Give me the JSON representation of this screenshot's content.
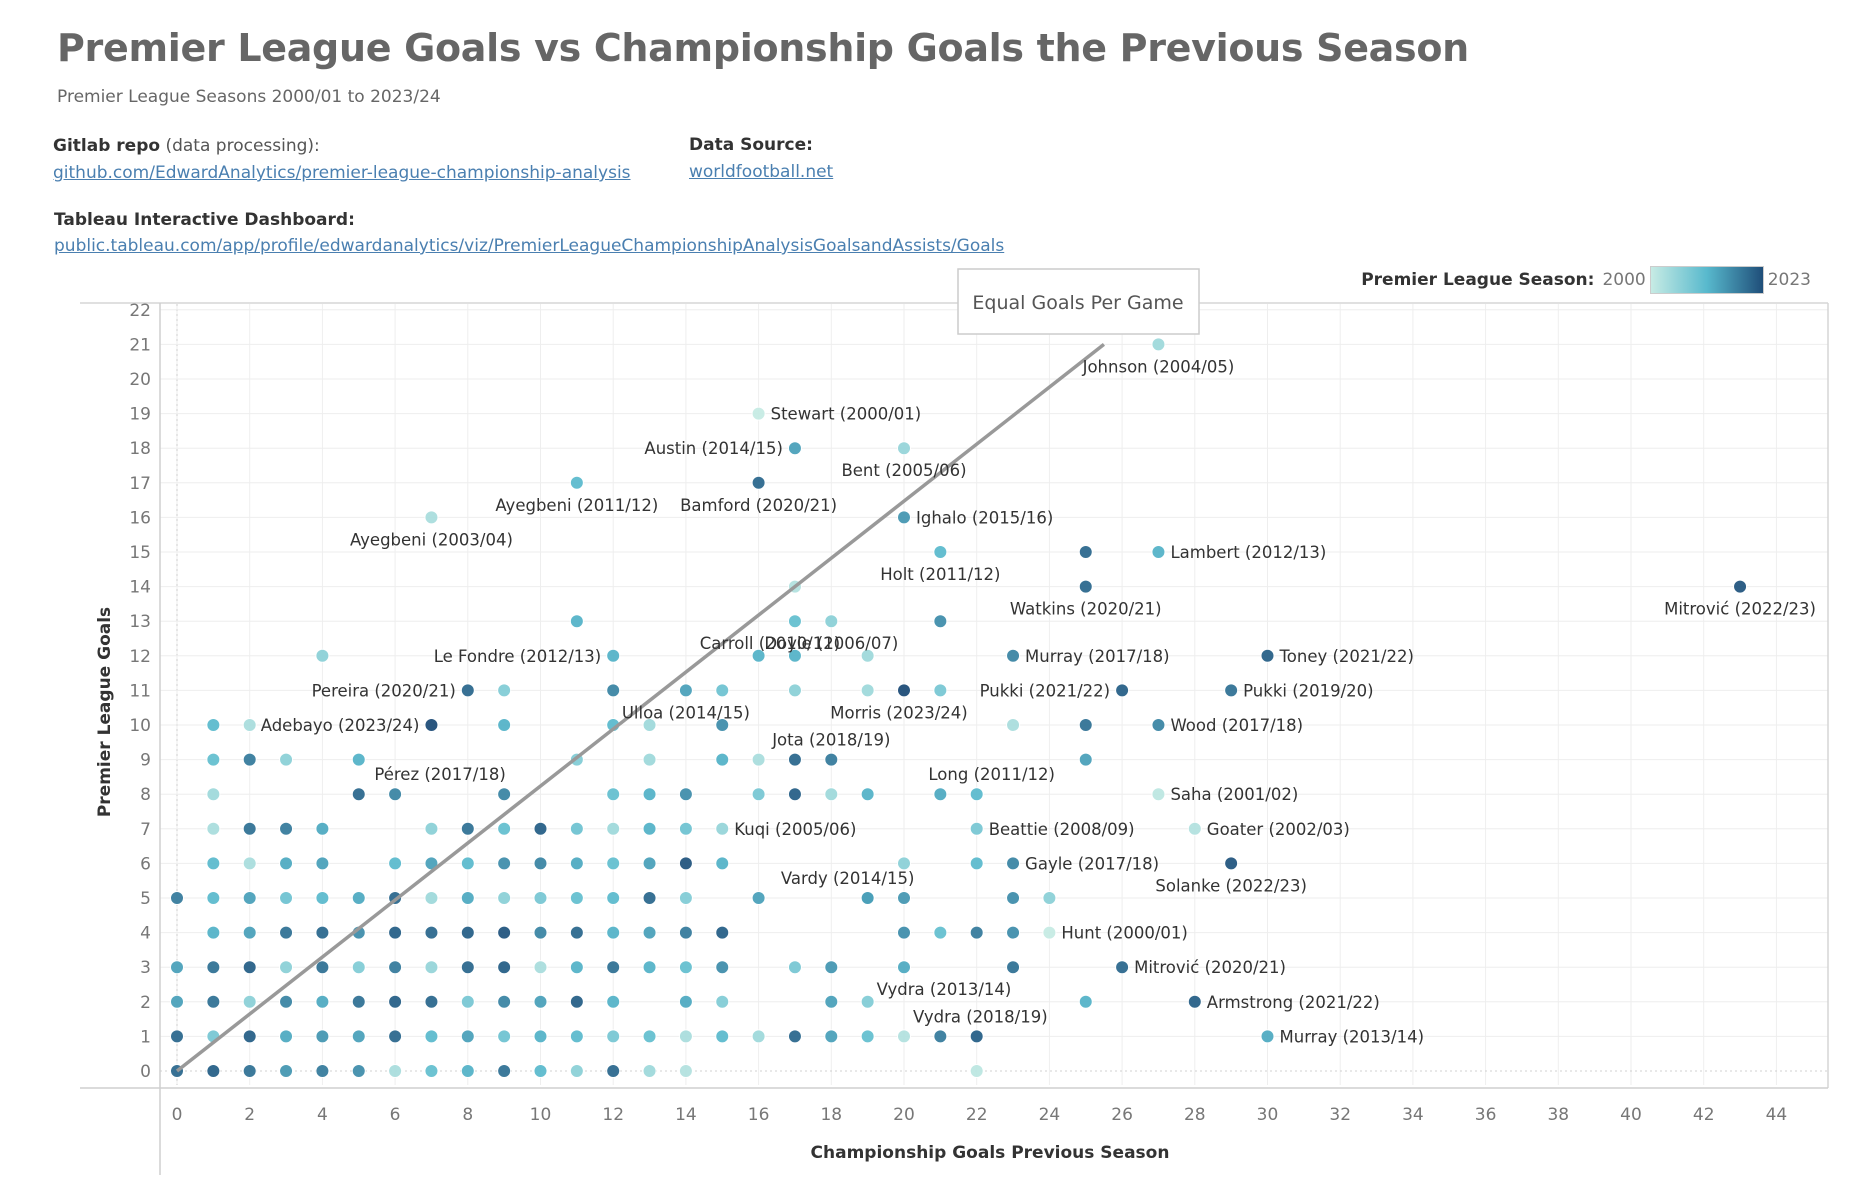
{
  "header": {
    "title": "Premier League Goals vs Championship Goals the Previous Season",
    "subtitle": "Premier League Seasons 2000/01 to 2023/24"
  },
  "info": {
    "gitlab_label": "Gitlab repo",
    "gitlab_suffix": " (data processing):",
    "gitlab_link": "github.com/EdwardAnalytics/premier-league-championship-analysis",
    "source_label": "Data Source:",
    "source_link": "worldfootball.net",
    "tableau_label": "Tableau  Interactive Dashboard:",
    "tableau_link": "public.tableau.com/app/profile/edwardanalytics/viz/PremierLeagueChampionshipAnalysisGoalsandAssists/Goals"
  },
  "legend": {
    "label": "Premier League Season:",
    "min": "2000",
    "max": "2023"
  },
  "annotation": {
    "text": "Equal Goals Per Game"
  },
  "colors": {
    "light": "#c7ebe4",
    "mid": "#58b9cd",
    "dark": "#1f4e79",
    "line": "#999999"
  },
  "chart_data": {
    "type": "scatter",
    "xlabel": "Championship Goals Previous Season",
    "ylabel": "Premier League Goals",
    "xlim": [
      -0.5,
      45.5
    ],
    "ylim": [
      -0.5,
      22.5
    ],
    "xticks": [
      0,
      2,
      4,
      6,
      8,
      10,
      12,
      14,
      16,
      18,
      20,
      22,
      24,
      26,
      28,
      30,
      32,
      34,
      36,
      38,
      40,
      42,
      44
    ],
    "yticks": [
      0,
      1,
      2,
      3,
      4,
      5,
      6,
      7,
      8,
      9,
      10,
      11,
      12,
      13,
      14,
      15,
      16,
      17,
      18,
      19,
      20,
      21,
      22
    ],
    "color_by": "Premier League Season",
    "reference_line": {
      "label": "Equal Goals Per Game",
      "from": [
        0,
        0
      ],
      "to": [
        25.5,
        21
      ]
    },
    "labeled_points": [
      {
        "label": "Johnson (2004/05)",
        "x": 27,
        "y": 21,
        "season": 2004
      },
      {
        "label": "Stewart (2000/01)",
        "x": 16,
        "y": 19,
        "season": 2000
      },
      {
        "label": "Austin (2014/15)",
        "x": 17,
        "y": 18,
        "season": 2014
      },
      {
        "label": "Bent (2005/06)",
        "x": 20,
        "y": 18,
        "season": 2005
      },
      {
        "label": "Ayegbeni (2011/12)",
        "x": 11,
        "y": 17,
        "season": 2011
      },
      {
        "label": "Bamford (2020/21)",
        "x": 16,
        "y": 17,
        "season": 2020
      },
      {
        "label": "Ayegbeni (2003/04)",
        "x": 7,
        "y": 16,
        "season": 2003
      },
      {
        "label": "Ighalo (2015/16)",
        "x": 20,
        "y": 16,
        "season": 2015
      },
      {
        "label": "Lambert (2012/13)",
        "x": 27,
        "y": 15,
        "season": 2012
      },
      {
        "label": "Holt (2011/12)",
        "x": 21,
        "y": 15,
        "season": 2011
      },
      {
        "label": "Mitrović (2022/23)",
        "x": 43,
        "y": 14,
        "season": 2022
      },
      {
        "label": "Watkins (2020/21)",
        "x": 25,
        "y": 14,
        "season": 2020
      },
      {
        "label": "Doyle (2006/07)",
        "x": 18,
        "y": 13,
        "season": 2006
      },
      {
        "label": "Carroll (2010/11)",
        "x": 17,
        "y": 13,
        "season": 2010
      },
      {
        "label": "Le Fondre (2012/13)",
        "x": 12,
        "y": 12,
        "season": 2012
      },
      {
        "label": "Murray (2017/18)",
        "x": 23,
        "y": 12,
        "season": 2017
      },
      {
        "label": "Toney (2021/22)",
        "x": 30,
        "y": 12,
        "season": 2021
      },
      {
        "label": "Ulloa (2014/15)",
        "x": 14,
        "y": 11,
        "season": 2014
      },
      {
        "label": "Pereira (2020/21)",
        "x": 8,
        "y": 11,
        "season": 2020
      },
      {
        "label": "Pukki (2021/22)",
        "x": 26,
        "y": 11,
        "season": 2021
      },
      {
        "label": "Pukki (2019/20)",
        "x": 29,
        "y": 11,
        "season": 2019
      },
      {
        "label": "Adebayo (2023/24)",
        "x": 7,
        "y": 10,
        "season": 2023
      },
      {
        "label": "Morris (2023/24)",
        "x": 20,
        "y": 11,
        "season": 2023
      },
      {
        "label": "Wood (2017/18)",
        "x": 27,
        "y": 10,
        "season": 2017
      },
      {
        "label": "Jota (2018/19)",
        "x": 18,
        "y": 9,
        "season": 2018
      },
      {
        "label": "Pérez (2017/18)",
        "x": 6,
        "y": 8,
        "season": 2017
      },
      {
        "label": "Long (2011/12)",
        "x": 22,
        "y": 8,
        "season": 2011
      },
      {
        "label": "Saha (2001/02)",
        "x": 27,
        "y": 8,
        "season": 2001
      },
      {
        "label": "Kuqi (2005/06)",
        "x": 15,
        "y": 7,
        "season": 2005
      },
      {
        "label": "Beattie (2008/09)",
        "x": 22,
        "y": 7,
        "season": 2008
      },
      {
        "label": "Goater (2002/03)",
        "x": 28,
        "y": 7,
        "season": 2002
      },
      {
        "label": "Gayle (2017/18)",
        "x": 23,
        "y": 6,
        "season": 2017
      },
      {
        "label": "Solanke (2022/23)",
        "x": 29,
        "y": 6,
        "season": 2022
      },
      {
        "label": "Vardy (2014/15)",
        "x": 19,
        "y": 5,
        "season": 2014
      },
      {
        "label": "Hunt (2000/01)",
        "x": 24,
        "y": 4,
        "season": 2000
      },
      {
        "label": "Mitrović (2020/21)",
        "x": 26,
        "y": 3,
        "season": 2020
      },
      {
        "label": "Vydra (2013/14)",
        "x": 20,
        "y": 3,
        "season": 2013
      },
      {
        "label": "Armstrong (2021/22)",
        "x": 28,
        "y": 2,
        "season": 2021
      },
      {
        "label": "Vydra (2018/19)",
        "x": 21,
        "y": 1,
        "season": 2018
      },
      {
        "label": "Murray (2013/14)",
        "x": 30,
        "y": 1,
        "season": 2013
      }
    ],
    "points": [
      [
        0,
        0,
        2020
      ],
      [
        1,
        0,
        2021
      ],
      [
        2,
        0,
        2019
      ],
      [
        3,
        0,
        2015
      ],
      [
        4,
        0,
        2018
      ],
      [
        5,
        0,
        2016
      ],
      [
        6,
        0,
        2003
      ],
      [
        7,
        0,
        2010
      ],
      [
        8,
        0,
        2012
      ],
      [
        9,
        0,
        2019
      ],
      [
        10,
        0,
        2011
      ],
      [
        11,
        0,
        2006
      ],
      [
        12,
        0,
        2020
      ],
      [
        13,
        0,
        2004
      ],
      [
        14,
        0,
        2002
      ],
      [
        22,
        0,
        2001
      ],
      [
        0,
        1,
        2020
      ],
      [
        1,
        1,
        2008
      ],
      [
        2,
        1,
        2021
      ],
      [
        3,
        1,
        2013
      ],
      [
        4,
        1,
        2015
      ],
      [
        5,
        1,
        2014
      ],
      [
        6,
        1,
        2020
      ],
      [
        7,
        1,
        2011
      ],
      [
        8,
        1,
        2014
      ],
      [
        9,
        1,
        2009
      ],
      [
        10,
        1,
        2012
      ],
      [
        11,
        1,
        2011
      ],
      [
        12,
        1,
        2008
      ],
      [
        13,
        1,
        2010
      ],
      [
        14,
        1,
        2003
      ],
      [
        15,
        1,
        2011
      ],
      [
        16,
        1,
        2004
      ],
      [
        17,
        1,
        2020
      ],
      [
        18,
        1,
        2014
      ],
      [
        19,
        1,
        2010
      ],
      [
        20,
        1,
        2002
      ],
      [
        22,
        1,
        2021
      ],
      [
        0,
        2,
        2014
      ],
      [
        1,
        2,
        2019
      ],
      [
        2,
        2,
        2006
      ],
      [
        3,
        2,
        2017
      ],
      [
        4,
        2,
        2013
      ],
      [
        5,
        2,
        2019
      ],
      [
        6,
        2,
        2021
      ],
      [
        7,
        2,
        2020
      ],
      [
        8,
        2,
        2008
      ],
      [
        9,
        2,
        2017
      ],
      [
        10,
        2,
        2014
      ],
      [
        11,
        2,
        2021
      ],
      [
        12,
        2,
        2012
      ],
      [
        14,
        2,
        2013
      ],
      [
        15,
        2,
        2007
      ],
      [
        18,
        2,
        2014
      ],
      [
        19,
        2,
        2007
      ],
      [
        25,
        2,
        2012
      ],
      [
        0,
        3,
        2014
      ],
      [
        1,
        3,
        2019
      ],
      [
        2,
        3,
        2021
      ],
      [
        3,
        3,
        2006
      ],
      [
        4,
        3,
        2019
      ],
      [
        5,
        3,
        2007
      ],
      [
        6,
        3,
        2018
      ],
      [
        7,
        3,
        2005
      ],
      [
        8,
        3,
        2020
      ],
      [
        9,
        3,
        2021
      ],
      [
        10,
        3,
        2003
      ],
      [
        11,
        3,
        2012
      ],
      [
        12,
        3,
        2019
      ],
      [
        13,
        3,
        2012
      ],
      [
        14,
        3,
        2010
      ],
      [
        15,
        3,
        2016
      ],
      [
        17,
        3,
        2008
      ],
      [
        18,
        3,
        2015
      ],
      [
        23,
        3,
        2019
      ],
      [
        1,
        4,
        2012
      ],
      [
        2,
        4,
        2014
      ],
      [
        3,
        4,
        2019
      ],
      [
        4,
        4,
        2020
      ],
      [
        5,
        4,
        2016
      ],
      [
        6,
        4,
        2021
      ],
      [
        7,
        4,
        2020
      ],
      [
        8,
        4,
        2021
      ],
      [
        9,
        4,
        2022
      ],
      [
        10,
        4,
        2017
      ],
      [
        11,
        4,
        2020
      ],
      [
        12,
        4,
        2012
      ],
      [
        13,
        4,
        2014
      ],
      [
        14,
        4,
        2018
      ],
      [
        15,
        4,
        2021
      ],
      [
        20,
        4,
        2016
      ],
      [
        21,
        4,
        2010
      ],
      [
        22,
        4,
        2018
      ],
      [
        23,
        4,
        2016
      ],
      [
        0,
        5,
        2018
      ],
      [
        1,
        5,
        2011
      ],
      [
        2,
        5,
        2014
      ],
      [
        3,
        5,
        2009
      ],
      [
        4,
        5,
        2011
      ],
      [
        5,
        5,
        2013
      ],
      [
        6,
        5,
        2020
      ],
      [
        7,
        5,
        2004
      ],
      [
        8,
        5,
        2013
      ],
      [
        9,
        5,
        2006
      ],
      [
        10,
        5,
        2008
      ],
      [
        11,
        5,
        2010
      ],
      [
        12,
        5,
        2011
      ],
      [
        13,
        5,
        2020
      ],
      [
        14,
        5,
        2007
      ],
      [
        16,
        5,
        2014
      ],
      [
        19,
        5,
        2018
      ],
      [
        20,
        5,
        2015
      ],
      [
        23,
        5,
        2016
      ],
      [
        24,
        5,
        2006
      ],
      [
        1,
        6,
        2011
      ],
      [
        2,
        6,
        2003
      ],
      [
        3,
        6,
        2013
      ],
      [
        4,
        6,
        2014
      ],
      [
        6,
        6,
        2011
      ],
      [
        7,
        6,
        2014
      ],
      [
        8,
        6,
        2011
      ],
      [
        9,
        6,
        2016
      ],
      [
        10,
        6,
        2017
      ],
      [
        11,
        6,
        2013
      ],
      [
        12,
        6,
        2010
      ],
      [
        13,
        6,
        2014
      ],
      [
        14,
        6,
        2022
      ],
      [
        15,
        6,
        2012
      ],
      [
        20,
        6,
        2006
      ],
      [
        22,
        6,
        2011
      ],
      [
        1,
        7,
        2003
      ],
      [
        2,
        7,
        2019
      ],
      [
        3,
        7,
        2018
      ],
      [
        4,
        7,
        2013
      ],
      [
        7,
        7,
        2006
      ],
      [
        8,
        7,
        2019
      ],
      [
        9,
        7,
        2010
      ],
      [
        10,
        7,
        2021
      ],
      [
        11,
        7,
        2009
      ],
      [
        12,
        7,
        2004
      ],
      [
        13,
        7,
        2012
      ],
      [
        14,
        7,
        2009
      ],
      [
        1,
        8,
        2004
      ],
      [
        5,
        8,
        2020
      ],
      [
        9,
        8,
        2017
      ],
      [
        12,
        8,
        2010
      ],
      [
        13,
        8,
        2012
      ],
      [
        14,
        8,
        2016
      ],
      [
        16,
        8,
        2008
      ],
      [
        17,
        8,
        2021
      ],
      [
        18,
        8,
        2004
      ],
      [
        19,
        8,
        2012
      ],
      [
        21,
        8,
        2013
      ],
      [
        1,
        9,
        2010
      ],
      [
        2,
        9,
        2018
      ],
      [
        3,
        9,
        2006
      ],
      [
        5,
        9,
        2012
      ],
      [
        11,
        9,
        2007
      ],
      [
        13,
        9,
        2004
      ],
      [
        15,
        9,
        2012
      ],
      [
        16,
        9,
        2003
      ],
      [
        17,
        9,
        2020
      ],
      [
        25,
        9,
        2014
      ],
      [
        1,
        10,
        2011
      ],
      [
        2,
        10,
        2003
      ],
      [
        9,
        10,
        2012
      ],
      [
        12,
        10,
        2011
      ],
      [
        13,
        10,
        2004
      ],
      [
        15,
        10,
        2016
      ],
      [
        23,
        10,
        2003
      ],
      [
        25,
        10,
        2019
      ],
      [
        9,
        11,
        2007
      ],
      [
        12,
        11,
        2017
      ],
      [
        15,
        11,
        2009
      ],
      [
        17,
        11,
        2006
      ],
      [
        19,
        11,
        2004
      ],
      [
        21,
        11,
        2008
      ],
      [
        4,
        12,
        2006
      ],
      [
        16,
        12,
        2012
      ],
      [
        17,
        12,
        2012
      ],
      [
        19,
        12,
        2004
      ],
      [
        11,
        13,
        2012
      ],
      [
        21,
        13,
        2016
      ],
      [
        17,
        14,
        2002
      ],
      [
        25,
        15,
        2020
      ]
    ]
  }
}
